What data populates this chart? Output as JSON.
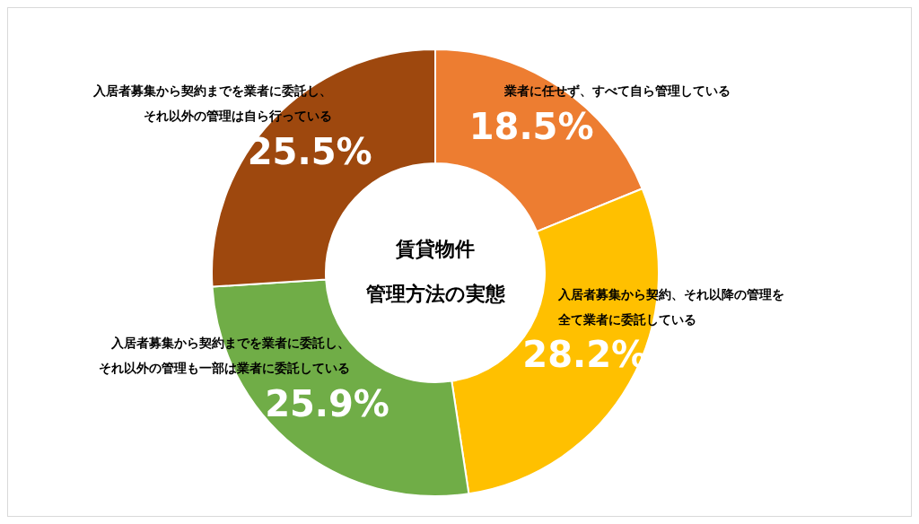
{
  "chart_data": {
    "type": "donut",
    "title": "賃貸物件",
    "subtitle": "管理方法の実態",
    "categories": [
      "業者に任せず、すべて自ら管理している",
      "入居者募集から契約、それ以降の管理を全て業者に委託している",
      "入居者募集から契約までを業者に委託し、それ以外の管理も一部は業者に委託している",
      "入居者募集から契約までを業者に委託し、それ以外の管理は自ら行っている"
    ],
    "values": [
      18.5,
      28.2,
      25.9,
      25.5
    ],
    "value_labels": [
      "18.5%",
      "28.2%",
      "25.9%",
      "25.5%"
    ],
    "colors": [
      "#ed7d31",
      "#ffc000",
      "#70ad47",
      "#9e480e"
    ],
    "legend": false
  }
}
